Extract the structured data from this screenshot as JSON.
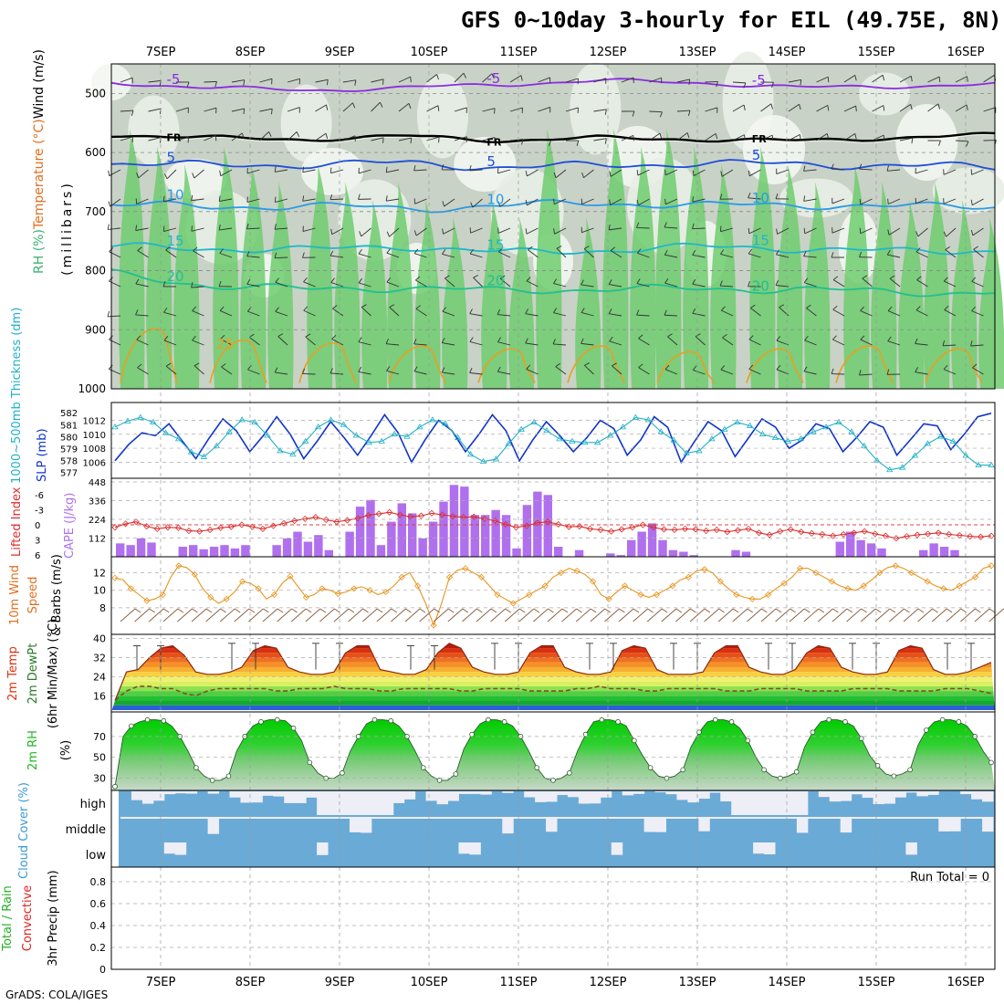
{
  "title": "GFS 0~10day 3-hourly for EIL (49.75E, 8N)",
  "footer": "GrADS: COLA/IGES",
  "chart_data": [
    {
      "panel": "upper-air",
      "type": "heatmap",
      "x_labels": [
        "7SEP",
        "8SEP",
        "9SEP",
        "10SEP",
        "11SEP",
        "12SEP",
        "13SEP",
        "14SEP",
        "15SEP",
        "16SEP"
      ],
      "ylabel_parts": [
        {
          "text": "RH (%)",
          "color": "#3cb371"
        },
        {
          "text": "Temperature (°C)",
          "color": "#e07020"
        },
        {
          "text": "Wind (m/s)",
          "color": "#000000"
        }
      ],
      "ylabel_units": "(millibars)",
      "yticks": [
        "500",
        "600",
        "700",
        "800",
        "900",
        "1000"
      ],
      "ylim": [
        1000,
        450
      ],
      "contours": [
        {
          "label": "-5",
          "color": "#8a2be2",
          "values_mb": [
            482,
            490,
            495,
            490,
            485,
            478,
            482,
            490,
            488,
            485
          ]
        },
        {
          "label": "FR",
          "color": "#000000",
          "values_mb": [
            570,
            575,
            578,
            572,
            580,
            575,
            578,
            580,
            575,
            570
          ]
        },
        {
          "label": "5",
          "color": "#1e4fd8",
          "values_mb": [
            618,
            622,
            620,
            618,
            625,
            622,
            618,
            620,
            622,
            625
          ]
        },
        {
          "label": "10",
          "color": "#2a9be8",
          "values_mb": [
            688,
            692,
            690,
            695,
            690,
            685,
            690,
            688,
            692,
            690
          ]
        },
        {
          "label": "15",
          "color": "#20b8c8",
          "values_mb": [
            760,
            762,
            765,
            758,
            770,
            765,
            760,
            762,
            768,
            765
          ]
        },
        {
          "label": "20",
          "color": "#20c090",
          "values_mb": [
            805,
            825,
            832,
            828,
            835,
            830,
            832,
            830,
            838,
            835
          ]
        },
        {
          "label": "25",
          "color": "#e8a020",
          "values_mb": [
            900,
            920,
            925,
            930,
            935,
            930,
            940,
            935,
            930,
            935
          ]
        }
      ]
    },
    {
      "panel": "sea-level-pressure",
      "type": "line",
      "ylabel_left": "1000~500mb Thickness (dm)",
      "ylabel_right": "SLP (mb)",
      "yticks_left": [
        "582",
        "581",
        "580",
        "579",
        "578",
        "577"
      ],
      "yticks_right": [
        "1012",
        "1010",
        "1008",
        "1006"
      ],
      "series": [
        {
          "name": "SLP (mb)",
          "color": "#1034c8",
          "values": [
            1006.2,
            1008.5,
            1010.2,
            1009.8,
            1011.5,
            1009.0,
            1006.5,
            1009.5,
            1012.2,
            1010.5,
            1007.5,
            1009.8,
            1012.5,
            1010.0,
            1006.5,
            1009.0,
            1011.8,
            1009.5,
            1007.0,
            1009.8,
            1012.8,
            1010.2,
            1006.0,
            1009.2,
            1012.0,
            1010.5,
            1007.5,
            1010.0,
            1012.8,
            1010.5,
            1006.2,
            1009.2,
            1011.8,
            1009.8,
            1007.5,
            1009.5,
            1012.0,
            1010.8,
            1007.0,
            1009.2,
            1012.5,
            1011.0,
            1006.0,
            1009.0,
            1011.8,
            1010.5,
            1006.8,
            1009.5,
            1012.2,
            1011.0,
            1008.0,
            1009.2,
            1011.5,
            1010.8,
            1007.5,
            1009.5,
            1011.8,
            1011.0,
            1007.0,
            1009.2,
            1011.5,
            1011.2,
            1007.8,
            1010.0,
            1012.5,
            1013.0
          ]
        },
        {
          "name": "Thickness (dm)",
          "color": "#20b0c8",
          "values": [
            580.8,
            581.3,
            581.6,
            581.2,
            580.3,
            579.8,
            578.7,
            578.3,
            579.2,
            580.4,
            581.4,
            581.2,
            580.1,
            578.8,
            578.5,
            579.6,
            580.8,
            581.4,
            581.0,
            580.1,
            579.5,
            579.6,
            580.2,
            580.0,
            580.8,
            581.4,
            581.1,
            579.9,
            578.5,
            577.9,
            578.1,
            579.4,
            580.6,
            581.2,
            580.5,
            579.8,
            579.6,
            579.5,
            579.5,
            580.1,
            580.8,
            581.6,
            581.4,
            580.4,
            579.7,
            578.6,
            578.8,
            579.8,
            580.6,
            581.2,
            580.9,
            580.2,
            579.9,
            579.6,
            579.8,
            580.4,
            580.8,
            581.2,
            580.4,
            579.2,
            578.0,
            577.2,
            577.4,
            578.4,
            579.4,
            580.0,
            579.6,
            578.4,
            577.6,
            577.6
          ]
        }
      ]
    },
    {
      "panel": "cape-lifted-index",
      "type": "bar",
      "ylabel_left": "Lifted Index",
      "ylabel_right": "CAPE (J/kg)",
      "yticks_left": [
        "-6",
        "-3",
        "0",
        "3",
        "6"
      ],
      "yticks_right": [
        "448",
        "336",
        "224",
        "112"
      ],
      "series": [
        {
          "name": "CAPE (J/kg)",
          "color": "#b070ee",
          "values": [
            80,
            70,
            110,
            85,
            0,
            0,
            60,
            70,
            45,
            60,
            70,
            50,
            70,
            0,
            0,
            70,
            110,
            150,
            90,
            130,
            40,
            0,
            150,
            300,
            340,
            70,
            210,
            320,
            260,
            110,
            210,
            330,
            430,
            420,
            250,
            250,
            280,
            250,
            50,
            310,
            390,
            370,
            60,
            0,
            40,
            0,
            0,
            20,
            10,
            100,
            150,
            200,
            100,
            40,
            30,
            10,
            0,
            0,
            0,
            40,
            30,
            0,
            0,
            0,
            0,
            0,
            0,
            0,
            0,
            90,
            150,
            100,
            80,
            50,
            0,
            0,
            0,
            40,
            80,
            60,
            40,
            0,
            0,
            0
          ]
        },
        {
          "name": "Lifted Index",
          "color": "#dd2c2c",
          "values": [
            0.5,
            -0.2,
            -0.6,
            0.3,
            0.8,
            0.5,
            0.6,
            1.2,
            1.3,
            1.0,
            0.6,
            0.4,
            0.0,
            0.4,
            0.8,
            0.2,
            -0.3,
            -0.8,
            -1.2,
            -1.5,
            -1.0,
            -0.6,
            -0.9,
            -1.3,
            -1.9,
            -2.2,
            -2.5,
            -2.0,
            -1.6,
            -1.8,
            -2.3,
            -2.0,
            -1.7,
            -1.5,
            -1.6,
            -1.2,
            -0.8,
            -0.1,
            0.5,
            0.2,
            -0.4,
            -0.6,
            -0.1,
            0.4,
            0.3,
            0.8,
            1.0,
            1.3,
            0.9,
            0.5,
            0.0,
            0.5,
            0.9,
            1.0,
            0.8,
            0.9,
            1.2,
            1.0,
            1.4,
            1.1,
            0.8,
            1.6,
            2.0,
            1.3,
            0.9,
            1.4,
            1.7,
            1.9,
            2.2,
            1.9,
            1.6,
            1.3,
            1.8,
            2.2,
            2.7,
            2.3,
            2.0,
            1.8,
            1.6,
            1.9,
            2.1,
            2.3,
            2.4,
            2.2
          ]
        }
      ]
    },
    {
      "panel": "10m-wind",
      "type": "line",
      "ylabel": "10m Wind Speed & Barbs (m/s)",
      "ylabel_parts": [
        {
          "text": "10m Wind",
          "color": "#e07020"
        },
        {
          "text": "Speed",
          "color": "#e07020"
        },
        {
          "text": "& Barbs (m/s)",
          "color": "#000000"
        }
      ],
      "yticks": [
        "12",
        "10",
        "8"
      ],
      "series": [
        {
          "name": "10m Wind Speed",
          "color": "#e8941c",
          "values": [
            11.4,
            11.2,
            10.2,
            9.5,
            8.8,
            9.0,
            9.5,
            11.5,
            12.8,
            12.6,
            11.8,
            10.2,
            9.2,
            8.5,
            9.0,
            9.8,
            11.0,
            10.8,
            10.2,
            9.0,
            9.5,
            10.8,
            11.6,
            10.4,
            9.2,
            9.5,
            10.2,
            10.0,
            9.6,
            9.8,
            10.2,
            10.4,
            10.0,
            9.5,
            9.8,
            10.5,
            11.5,
            12.0,
            10.5,
            8.5,
            6.0,
            8.5,
            11.5,
            12.3,
            12.5,
            12.0,
            11.5,
            10.5,
            9.5,
            9.0,
            8.5,
            9.0,
            9.5,
            10.0,
            10.5,
            11.5,
            12.0,
            12.5,
            12.2,
            11.8,
            11.0,
            9.5,
            9.0,
            9.8,
            10.5,
            10.0,
            9.5,
            9.2,
            9.5,
            10.0,
            10.5,
            11.2,
            11.5,
            12.2,
            12.4,
            12.0,
            11.0,
            10.2,
            9.5,
            9.2,
            9.0,
            9.0,
            9.5,
            10.2,
            10.8,
            11.5,
            12.5,
            12.5,
            12.0,
            11.5,
            11.0,
            10.5,
            10.2,
            10.0,
            10.5,
            11.2,
            12.0,
            12.6,
            12.8,
            12.5,
            12.0,
            11.5,
            11.0,
            10.5,
            10.2,
            10.0,
            10.5,
            11.0,
            11.5,
            12.5,
            12.8
          ]
        }
      ]
    },
    {
      "panel": "2m-temp",
      "type": "area",
      "ylabel_parts": [
        {
          "text": "2m Temp",
          "color": "#dd3311"
        },
        {
          "text": "2m DewPt",
          "color": "#2a7a2a"
        },
        {
          "text": "(6hr Min/Max) (°C)",
          "color": "#000000"
        }
      ],
      "yticks": [
        "40",
        "32",
        "24",
        "16"
      ],
      "series": [
        {
          "name": "2m Temp",
          "color": "#8a2810",
          "values": [
            14,
            26,
            27,
            32,
            36,
            37,
            33,
            26,
            25,
            25,
            26,
            28,
            35,
            37,
            36,
            28,
            26,
            25,
            25,
            26,
            34,
            37,
            37,
            27,
            26,
            25,
            25,
            27,
            34,
            38,
            36,
            28,
            26,
            25,
            25,
            26,
            34,
            37,
            37,
            28,
            26,
            25,
            25,
            26,
            35,
            37,
            36,
            27,
            25,
            25,
            25,
            26,
            34,
            37,
            37,
            28,
            26,
            25,
            25,
            27,
            34,
            37,
            36,
            28,
            26,
            25,
            25,
            26,
            35,
            37,
            36,
            27,
            25,
            25,
            26,
            28,
            30
          ]
        },
        {
          "name": "2m DewPt",
          "color": "#8a4a2a",
          "values": [
            14,
            18,
            20,
            20,
            19,
            19,
            17,
            16,
            18,
            19,
            19,
            19,
            19,
            19,
            18,
            18,
            19,
            19,
            19,
            20,
            19,
            19,
            19,
            18,
            18,
            19,
            19,
            19,
            19,
            19,
            18,
            18,
            19,
            19,
            19,
            19,
            18,
            18,
            18,
            18,
            19,
            19,
            20,
            19,
            19,
            19,
            18,
            18,
            19,
            19,
            19,
            19,
            19,
            18,
            18,
            18,
            19,
            19,
            19,
            19,
            18,
            18,
            18,
            18,
            19,
            19,
            19,
            19,
            18,
            18,
            18,
            18,
            19,
            19,
            19,
            18,
            17
          ]
        },
        {
          "name": "6hr Max",
          "color": "#000000",
          "values": [
            37,
            38,
            38,
            37,
            38,
            38,
            38,
            38,
            38,
            38
          ]
        }
      ]
    },
    {
      "panel": "2m-rh",
      "type": "area",
      "ylabel_parts": [
        {
          "text": "2m RH",
          "color": "#20b820"
        },
        {
          "text": "(%)",
          "color": "#000000"
        }
      ],
      "yticks": [
        "70",
        "50",
        "30"
      ],
      "series": [
        {
          "name": "2m RH",
          "color": "#10cc10",
          "values": [
            22,
            70,
            80,
            84,
            86,
            86,
            85,
            80,
            70,
            56,
            40,
            32,
            28,
            28,
            32,
            56,
            70,
            80,
            84,
            86,
            86,
            85,
            78,
            66,
            45,
            35,
            30,
            30,
            35,
            56,
            70,
            82,
            86,
            86,
            85,
            80,
            70,
            56,
            40,
            32,
            28,
            28,
            34,
            58,
            72,
            82,
            86,
            86,
            84,
            80,
            70,
            56,
            40,
            30,
            28,
            30,
            35,
            56,
            72,
            84,
            86,
            86,
            84,
            80,
            66,
            52,
            40,
            32,
            30,
            32,
            38,
            60,
            74,
            84,
            86,
            86,
            84,
            78,
            66,
            50,
            38,
            32,
            30,
            32,
            36,
            60,
            74,
            84,
            86,
            86,
            84,
            80,
            68,
            52,
            42,
            34,
            32,
            34,
            38,
            62,
            76,
            84,
            86,
            86,
            84,
            80,
            70,
            56,
            45
          ]
        }
      ]
    },
    {
      "panel": "cloud-cover",
      "type": "heatmap",
      "ylabel": "Cloud Cover (%)",
      "rows": [
        "high",
        "middle",
        "low"
      ],
      "colors": {
        "clear": "#6aaad6",
        "cloud": "#eeeef6"
      }
    },
    {
      "panel": "precip",
      "type": "bar",
      "ylabel_parts": [
        {
          "text": "Total / Rain",
          "color": "#20b020"
        },
        {
          "text": "Convective",
          "color": "#dd2222"
        },
        {
          "text": "3hr Precip (mm)",
          "color": "#000000"
        }
      ],
      "yticks": [
        "0.8",
        "0.6",
        "0.4",
        "0.2",
        "0"
      ],
      "ylim": [
        0,
        0.9
      ],
      "run_total": "Run Total = 0",
      "values": []
    }
  ]
}
